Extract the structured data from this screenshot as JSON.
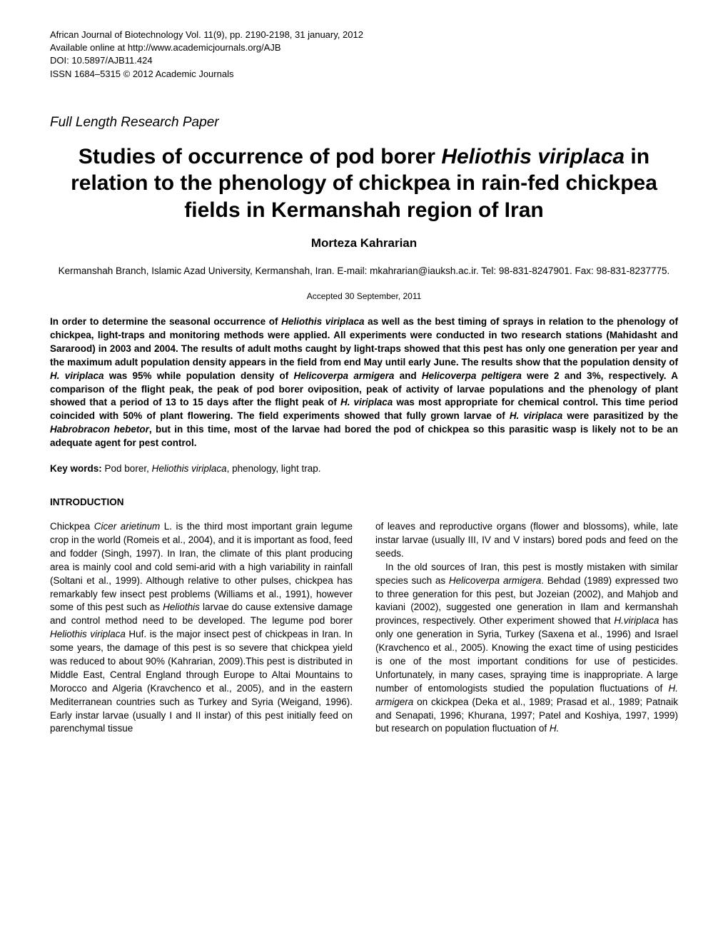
{
  "header": {
    "line1": "African Journal of Biotechnology Vol. 11(9), pp. 2190-2198, 31 january, 2012",
    "line2": "Available online at http://www.academicjournals.org/AJB",
    "line3": "DOI: 10.5897/AJB11.424",
    "line4": "ISSN 1684–5315 © 2012 Academic Journals"
  },
  "paper_type": "Full Length Research Paper",
  "title": {
    "pre": "Studies of occurrence of pod borer ",
    "species": "Heliothis viriplaca",
    "post": " in relation to the phenology of chickpea in rain-fed chickpea fields in Kermanshah region of Iran"
  },
  "author": "Morteza Kahrarian",
  "affiliation": "Kermanshah Branch, Islamic Azad University, Kermanshah, Iran. E-mail: mkahrarian@iauksh.ac.ir. Tel: 98-831-8247901. Fax: 98-831-8237775.",
  "accepted": "Accepted 30 September, 2011",
  "abstract": {
    "t1": "In order to determine the seasonal occurrence of ",
    "s1": "Heliothis viriplaca",
    "t2": " as well as the best timing of sprays in relation to the phenology of chickpea, light-traps and monitoring methods were applied. All experiments were conducted in two research stations (Mahidasht and Sararood) in 2003 and 2004. The results of adult moths caught by light-traps showed that this pest has only one generation per year and the maximum adult population density appears in the field from end May until early June. The results show that the population density of ",
    "s2": "H. viriplaca",
    "t3": " was 95% while population density of ",
    "s3": "Helicoverpa armigera",
    "t4": " and ",
    "s4": "Helicoverpa peltigera",
    "t5": " were 2 and 3%, respectively. A comparison of the flight peak, the peak of pod borer oviposition, peak of activity of larvae populations and the phenology of plant showed that a period of 13 to 15 days after the flight peak of ",
    "s5": "H. viriplaca",
    "t6": " was most appropriate for chemical control. This time period coincided with 50% of plant flowering. The field experiments showed that fully grown larvae of ",
    "s6": "H. viriplaca",
    "t7": " were parasitized by the ",
    "s7": "Habrobracon hebetor",
    "t8": ", but in this time, most of the larvae had bored the pod of chickpea so this parasitic wasp is likely not to be an adequate agent for pest control."
  },
  "keywords": {
    "label": "Key words:",
    "t1": " Pod borer, ",
    "s1": "Heliothis viriplaca",
    "t2": ", phenology, light trap."
  },
  "section_heading": "INTRODUCTION",
  "col_left": {
    "t1": "Chickpea ",
    "s1": "Cicer arietinum",
    "t2": " L. is the third most important grain legume crop in the world (Romeis et al., 2004), and it is important as food, feed and fodder (Singh, 1997). In Iran, the climate of this plant producing area is mainly cool and cold semi-arid with a high variability in rainfall (Soltani et al., 1999). Although relative to other pulses, chickpea has remarkably few insect pest problems (Williams et al., 1991), however some of this pest such as ",
    "s2": "Heliothis",
    "t3": " larvae do cause extensive damage and control method need to be developed. The legume pod borer ",
    "s3": "Heliothis viriplaca",
    "t4": " Huf. is the major insect pest of chickpeas in Iran. In some years, the damage of this pest is so severe that chickpea yield was reduced to about 90% (Kahrarian, 2009).This pest is distributed in Middle East, Central England through Europe to Altai Mountains to Morocco and Algeria (Kravchenco et al., 2005), and in the eastern Mediterranean countries such as Turkey and Syria (Weigand, 1996). Early instar larvae (usually I and II instar) of this pest initially feed on parenchymal tissue"
  },
  "col_right": {
    "p1": "of leaves and reproductive organs (flower and blossoms), while, late instar larvae (usually III, IV and V instars) bored pods and feed on the seeds.",
    "t1": "In the old sources of Iran, this pest is mostly mistaken with similar species such as ",
    "s1": "Helicoverpa armigera",
    "t2": ". Behdad (1989) expressed two to three generation for this pest, but Jozeian (2002), and Mahjob and kaviani (2002), suggested one generation in Ilam and kermanshah provinces, respectively. Other experiment showed that ",
    "s2": "H.viriplaca",
    "t3": " has only one generation in Syria, Turkey (Saxena et al., 1996) and Israel (Kravchenco et al., 2005). Knowing the exact time of using pesticides is one of the most important conditions for use of pesticides. Unfortunately, in many cases, spraying time is inappropriate. A large number of entomologists studied the population fluctuations of ",
    "s3": "H. armigera",
    "t4": " on ckickpea (Deka et al., 1989; Prasad et al., 1989; Patnaik and Senapati, 1996; Khurana, 1997; Patel and Koshiya, 1997, 1999) but research on population fluctuation of ",
    "s4": "H."
  }
}
